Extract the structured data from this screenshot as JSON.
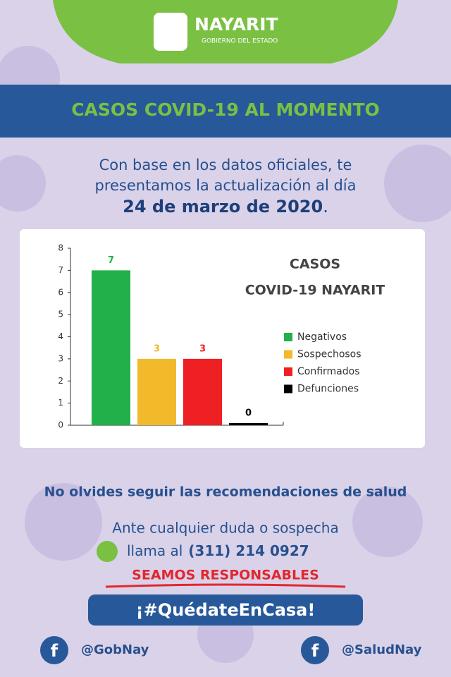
{
  "header": {
    "title": "NAYARIT",
    "subtitle": "GOBIERNO DEL ESTADO"
  },
  "banner": "CASOS COVID-19 AL MOMENTO",
  "intro": {
    "lines": [
      "Con base en los datos oficiales, te",
      "presentamos la actualización al día"
    ],
    "date": "24 de marzo de 2020",
    "end": "."
  },
  "chart_data": {
    "type": "bar",
    "title": [
      "CASOS",
      "COVID-19 NAYARIT"
    ],
    "categories": [
      null
    ],
    "series": [
      {
        "name": "Negativos",
        "color": "#22b04b",
        "values": [
          7
        ]
      },
      {
        "name": "Sospechosos",
        "color": "#f2b92a",
        "values": [
          3
        ]
      },
      {
        "name": "Confirmados",
        "color": "#ee2024",
        "values": [
          3
        ]
      },
      {
        "name": "Defunciones",
        "color": "#000000",
        "values": [
          0
        ]
      }
    ],
    "ylim": [
      0,
      8
    ],
    "yticks": [
      0,
      1,
      2,
      3,
      4,
      5,
      6,
      7,
      8
    ],
    "grid": false,
    "legend": "right"
  },
  "reminder": "No olvides seguir las recomendaciones de salud",
  "contact": {
    "line": "Ante cualquier duda o sospecha",
    "call": "llama al",
    "phone": "(311) 214 0927"
  },
  "slogan": "SEAMOS RESPONSABLES",
  "hashtag": "¡#QuédateEnCasa!",
  "social": [
    "@GobNay",
    "@SaludNay"
  ]
}
